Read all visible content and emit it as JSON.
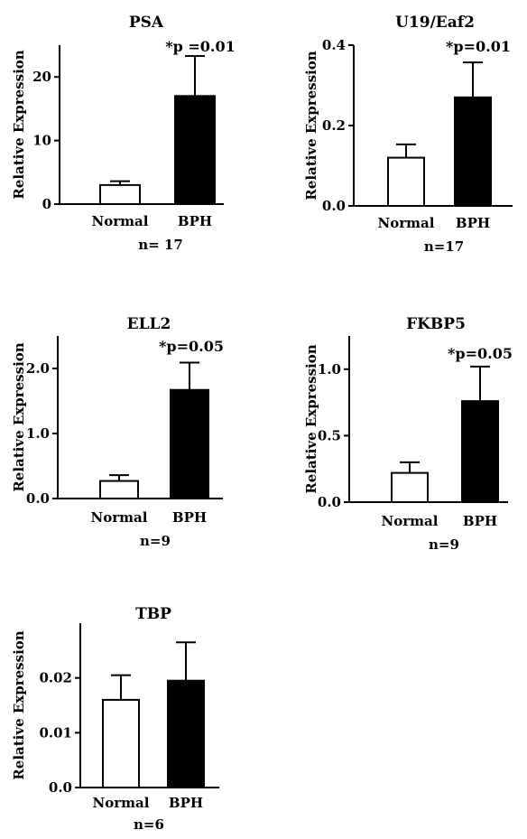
{
  "chart_data": [
    {
      "type": "bar",
      "title": "PSA",
      "ylabel": "Relative Expression",
      "categories": [
        "Normal",
        "BPH"
      ],
      "values": [
        3.0,
        17.0
      ],
      "errors": [
        0.6,
        6.3
      ],
      "yticks": [
        "0",
        "10",
        "20"
      ],
      "ylim": [
        0,
        25
      ],
      "annotation": "*p =0.01",
      "n_label": "n= 17",
      "colors": [
        "#ffffff",
        "#000000"
      ]
    },
    {
      "type": "bar",
      "title": "U19/Eaf2",
      "ylabel": "Relative Expression",
      "categories": [
        "Normal",
        "BPH"
      ],
      "values": [
        0.12,
        0.27
      ],
      "errors": [
        0.033,
        0.087
      ],
      "yticks": [
        "0.0",
        "0.2",
        "0.4"
      ],
      "ylim": [
        0,
        0.4
      ],
      "annotation": "*p=0.01",
      "n_label": "n=17",
      "colors": [
        "#ffffff",
        "#000000"
      ]
    },
    {
      "type": "bar",
      "title": "ELL2",
      "ylabel": "Relative Expression",
      "categories": [
        "Normal",
        "BPH"
      ],
      "values": [
        0.27,
        1.67
      ],
      "errors": [
        0.09,
        0.42
      ],
      "yticks": [
        "0.0",
        "1.0",
        "2.0"
      ],
      "ylim": [
        0,
        2.5
      ],
      "annotation": "*p=0.05",
      "n_label": "n=9",
      "colors": [
        "#ffffff",
        "#000000"
      ]
    },
    {
      "type": "bar",
      "title": "FKBP5",
      "ylabel": "Relative Expression",
      "categories": [
        "Normal",
        "BPH"
      ],
      "values": [
        0.22,
        0.76
      ],
      "errors": [
        0.08,
        0.26
      ],
      "yticks": [
        "0.0",
        "0.5",
        "1.0"
      ],
      "ylim": [
        0,
        1.25
      ],
      "annotation": "*p=0.05",
      "n_label": "n=9",
      "colors": [
        "#ffffff",
        "#000000"
      ]
    },
    {
      "type": "bar",
      "title": "TBP",
      "ylabel": "Relative Expression",
      "categories": [
        "Normal",
        "BPH"
      ],
      "values": [
        0.016,
        0.0195
      ],
      "errors": [
        0.0045,
        0.007
      ],
      "yticks": [
        "0.0",
        "0.01",
        "0.02"
      ],
      "ylim": [
        0,
        0.03
      ],
      "annotation": "",
      "n_label": "n=6",
      "colors": [
        "#ffffff",
        "#000000"
      ]
    }
  ]
}
